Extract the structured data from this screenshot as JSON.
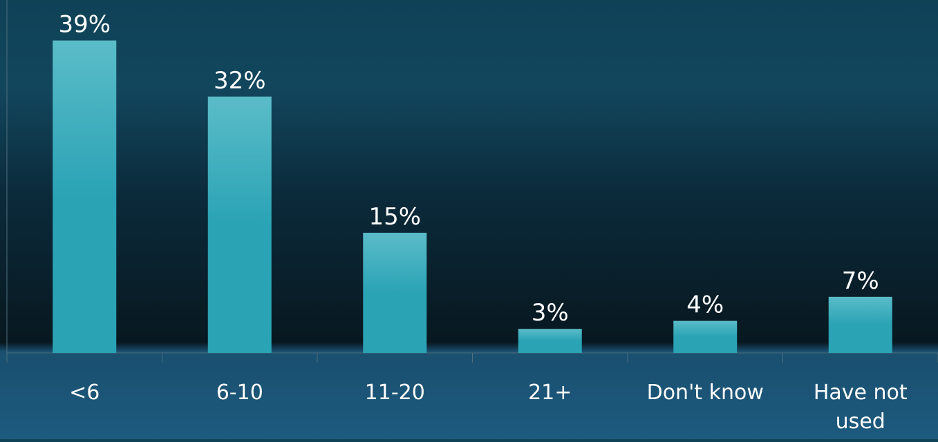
{
  "chart_data": {
    "type": "bar",
    "categories": [
      "<6",
      "6-10",
      "11-20",
      "21+",
      "Don't know",
      "Have not used"
    ],
    "values": [
      39,
      32,
      15,
      3,
      4,
      7
    ],
    "value_labels": [
      "39%",
      "32%",
      "15%",
      "3%",
      "4%",
      "7%"
    ],
    "title": "",
    "xlabel": "",
    "ylabel": "",
    "ylim": [
      0,
      40
    ],
    "grid": false,
    "legend": "none",
    "colors": {
      "bar_top": "#5bbcc8",
      "bar_bottom": "#2aa3b5",
      "axis": "#4f6f7f",
      "text": "#ffffff"
    }
  }
}
